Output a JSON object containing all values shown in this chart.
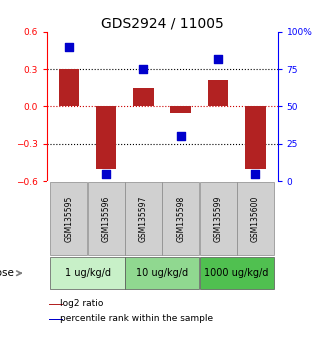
{
  "title": "GDS2924 / 11005",
  "samples": [
    "GSM135595",
    "GSM135596",
    "GSM135597",
    "GSM135598",
    "GSM135599",
    "GSM135600"
  ],
  "log2_ratio": [
    0.305,
    -0.5,
    0.15,
    -0.055,
    0.21,
    -0.5
  ],
  "percentile_rank": [
    90,
    5,
    75,
    30,
    82,
    5
  ],
  "ylim_left": [
    -0.6,
    0.6
  ],
  "ylim_right": [
    0,
    100
  ],
  "yticks_left": [
    -0.6,
    -0.3,
    0,
    0.3,
    0.6
  ],
  "yticks_right": [
    0,
    25,
    50,
    75,
    100
  ],
  "ytick_labels_right": [
    "0",
    "25",
    "50",
    "75",
    "100%"
  ],
  "hlines_black": [
    0.3,
    -0.3
  ],
  "hline_red": 0,
  "bar_color": "#b22222",
  "dot_color": "#0000cc",
  "dose_groups": [
    {
      "label": "1 ug/kg/d",
      "indices": [
        0,
        1
      ],
      "color": "#c8f0c8"
    },
    {
      "label": "10 ug/kg/d",
      "indices": [
        2,
        3
      ],
      "color": "#90d890"
    },
    {
      "label": "1000 ug/kg/d",
      "indices": [
        4,
        5
      ],
      "color": "#50c050"
    }
  ],
  "dose_label": "dose",
  "legend_log2": "log2 ratio",
  "legend_pct": "percentile rank within the sample",
  "bar_width": 0.55,
  "dot_size": 28,
  "title_fontsize": 10,
  "tick_fontsize": 6.5,
  "label_fontsize": 7.5,
  "sample_fontsize": 5.5,
  "dose_fontsize": 7,
  "legend_fontsize": 6.5
}
